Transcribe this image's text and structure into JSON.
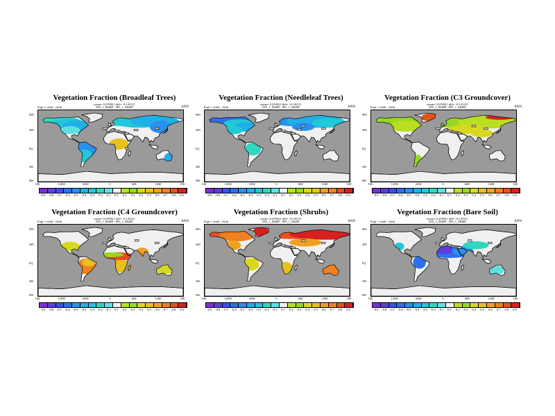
{
  "panels": [
    {
      "id": "broadleaf",
      "title": "Vegetation Fraction (Broadleaf Trees)",
      "meta": "mean= 0.259921  diff= -0.145111",
      "expt": "Expt = clmb - clmb",
      "run": "005_1_MaBP - 005_1_MaBP",
      "season": "ANN",
      "scheme": "broadleaf"
    },
    {
      "id": "needleleaf",
      "title": "Vegetation Fraction (Needleleaf Trees)",
      "meta": "mean= 0.259921  diff= -0.145111",
      "expt": "Expt = clmb - clmb",
      "run": "005_1_MaBP - 005_1_MaBP",
      "season": "ANN",
      "scheme": "needleleaf"
    },
    {
      "id": "c3",
      "title": "Vegetation Fraction (C3 Groundcover)",
      "meta": "mean= 0.259921  diff= -0.145111",
      "expt": "Expt = clmb - clmb",
      "run": "005_1_MaBP - 005_1_MaBP",
      "season": "ANN",
      "scheme": "c3"
    },
    {
      "id": "c4",
      "title": "Vegetation Fraction (C4 Groundcover)",
      "meta": "mean= 0.259921  diff= -0.145111",
      "expt": "Expt = clmb - clmb",
      "run": "005_1_MaBP - 005_1_MaBP",
      "season": "ANN",
      "scheme": "c4"
    },
    {
      "id": "shrubs",
      "title": "Vegetation Fraction (Shrubs)",
      "meta": "mean= 0.259921  diff= -0.145111",
      "expt": "Expt = clmb - clmb",
      "run": "005_1_MaBP - 005_1_MaBP",
      "season": "ANN",
      "scheme": "shrubs"
    },
    {
      "id": "baresoil",
      "title": "Vegetation Fraction (Bare Soil)",
      "meta": "mean= 0.259921  diff= -0.145111",
      "expt": "Expt = clmb - clmb",
      "run": "005_1_MaBP - 005_1_MaBP",
      "season": "ANN",
      "scheme": "baresoil"
    }
  ],
  "lat_labels": [
    "80N",
    "40N",
    "EQ",
    "40S",
    "80S"
  ],
  "lon_labels": [
    "180",
    "120W",
    "60W",
    "0",
    "60E",
    "120E",
    "180"
  ],
  "colorbar": {
    "labels": [
      "-0.9",
      "-0.8",
      "-0.7",
      "-0.6",
      "-0.5",
      "-0.4",
      "-0.3",
      "-0.2",
      "-0.1",
      "0.1",
      "0.2",
      "0.3",
      "0.4",
      "0.5",
      "0.6",
      "0.7",
      "0.8",
      "0.9"
    ],
    "colors": [
      "#7a2fd6",
      "#5a3fe0",
      "#3a4ff0",
      "#2f6ff0",
      "#2a90ee",
      "#20b0e8",
      "#20c8d8",
      "#30d8c0",
      "#60e0e0",
      "#f0f0f0",
      "#b8e020",
      "#98d820",
      "#d8d820",
      "#e8c020",
      "#f0a020",
      "#f08020",
      "#e85020",
      "#d82020"
    ]
  },
  "colors": {
    "ocean": "#9a9a9a",
    "land_neutral": "#f0f0f0",
    "coast": "#000000"
  }
}
